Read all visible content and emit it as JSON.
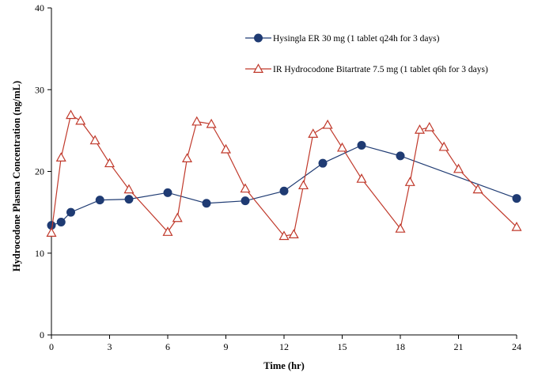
{
  "chart_data": {
    "type": "line",
    "title": "",
    "xlabel": "Time (hr)",
    "ylabel": "Hydrocodone  Plasma Concentration (ng/mL)",
    "xlim": [
      0,
      24
    ],
    "ylim": [
      0,
      40
    ],
    "xticks": [
      0,
      3,
      6,
      9,
      12,
      15,
      18,
      21,
      24
    ],
    "yticks": [
      0,
      10,
      20,
      30,
      40
    ],
    "grid": false,
    "legend_position": "top-right",
    "series": [
      {
        "name": "Hysingla ER 30 mg (1 tablet q24h for 3 days)",
        "color": "#1f3b73",
        "marker": "circle",
        "x": [
          0,
          0.5,
          1,
          2.5,
          4,
          6,
          8,
          10,
          12,
          14,
          16,
          18,
          24
        ],
        "y": [
          13.4,
          13.8,
          15.0,
          16.5,
          16.6,
          17.4,
          16.1,
          16.4,
          17.6,
          21.0,
          23.2,
          21.9,
          16.7
        ]
      },
      {
        "name": "IR Hydrocodone Bitartrate 7.5 mg (1 tablet q6h for 3 days)",
        "color": "#c0392b",
        "marker": "triangle-open",
        "x": [
          0,
          0.5,
          1,
          1.5,
          2.25,
          3,
          4,
          6,
          6.5,
          7,
          7.5,
          8.25,
          9,
          10,
          12,
          12.5,
          13,
          13.5,
          14.25,
          15,
          16,
          18,
          18.5,
          19,
          19.5,
          20.25,
          21,
          22,
          24
        ],
        "y": [
          12.5,
          21.7,
          26.9,
          26.2,
          23.8,
          21.0,
          17.8,
          12.6,
          14.3,
          21.6,
          26.1,
          25.8,
          22.7,
          17.9,
          12.1,
          12.3,
          18.3,
          24.6,
          25.7,
          22.9,
          19.1,
          13.0,
          18.7,
          25.1,
          25.4,
          23.0,
          20.3,
          17.8,
          13.2
        ]
      }
    ]
  }
}
